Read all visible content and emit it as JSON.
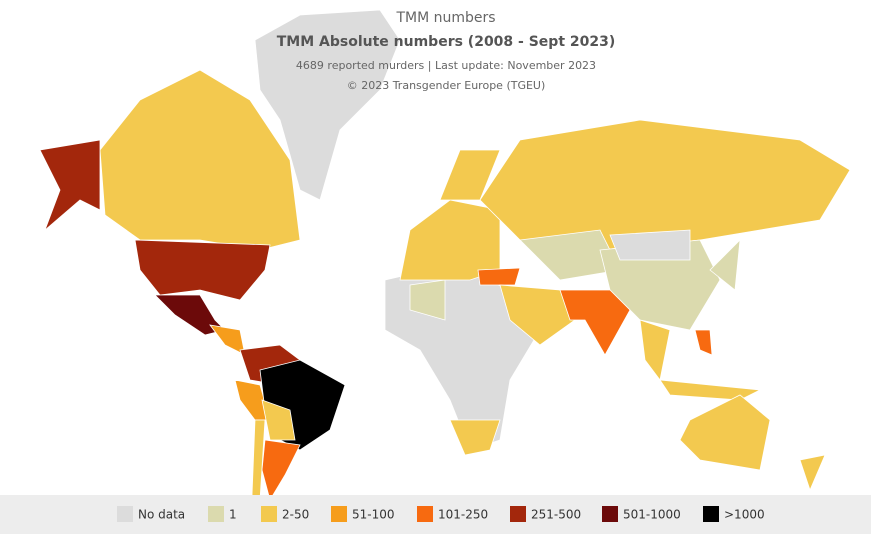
{
  "header": {
    "title": "TMM numbers",
    "subtitle": "TMM Absolute numbers (2008 - Sept 2023)",
    "note": "4689 reported murders | Last update: November 2023",
    "credit": "© 2023 Transgender Europe (TGEU)"
  },
  "legend": [
    {
      "label": "No data",
      "color": "#dcdcdc"
    },
    {
      "label": "1",
      "color": "#dbdaae"
    },
    {
      "label": "2-50",
      "color": "#f3c94f"
    },
    {
      "label": "51-100",
      "color": "#f69d1c"
    },
    {
      "label": "101-250",
      "color": "#f76a10"
    },
    {
      "label": "251-500",
      "color": "#a3270c"
    },
    {
      "label": "501-1000",
      "color": "#6c0a0a"
    },
    {
      "label": ">1000",
      "color": "#000000"
    }
  ]
}
